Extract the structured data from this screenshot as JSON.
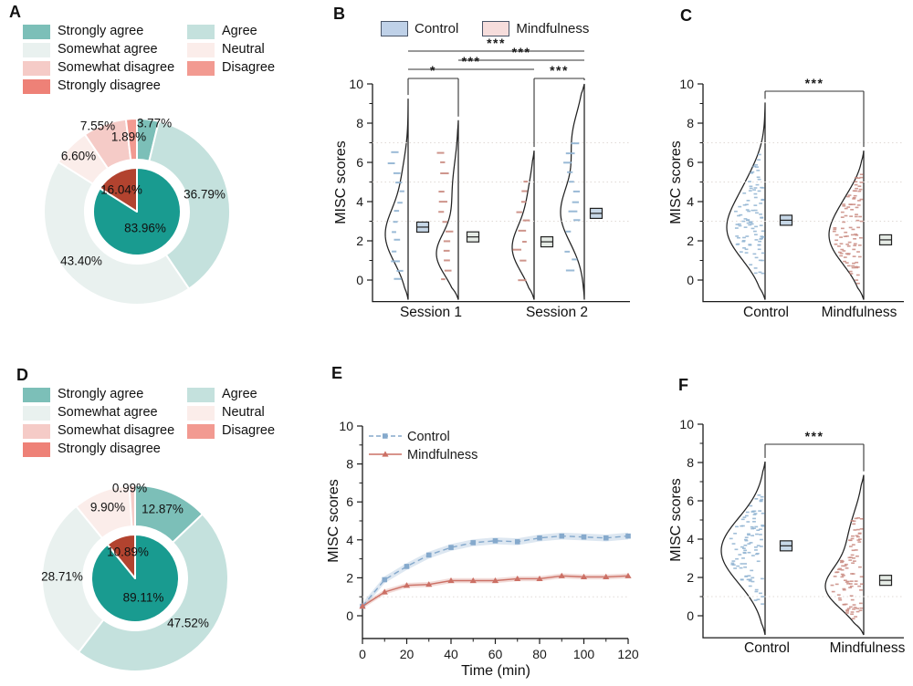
{
  "figure_title": "MISC scores figure",
  "colors": {
    "strongly_agree": "#7CBFB8",
    "agree": "#C4E1DD",
    "somewhat_agree": "#E9F1EF",
    "neutral": "#FBEDEA",
    "somewhat_disagree": "#F5CBC7",
    "disagree": "#F29A91",
    "strongly_disagree": "#EE8177",
    "inner_agree": "#199B90",
    "inner_disagree": "#B2432F",
    "control_fill": "#BFD1E8",
    "mindfulness_fill": "#F6DDDC",
    "control_line": "#85A9CC",
    "mindfulness_line": "#CC7065",
    "control_scatter": "#8FB3D1",
    "mindfulness_scatter": "#C98A80",
    "box_control": "#C7D8E8",
    "box_mindfulness": "#E6ECE6",
    "band_control": "rgba(133,169,204,0.28)",
    "band_mindfulness": "rgba(204,112,101,0.25)",
    "refline": "#E0DAD6",
    "axis": "#1A1A1A"
  },
  "chart_data": [
    {
      "id": "A",
      "type": "donut",
      "legend": [
        {
          "label": "Strongly agree",
          "color_key": "strongly_agree"
        },
        {
          "label": "Somewhat agree",
          "color_key": "somewhat_agree"
        },
        {
          "label": "Somewhat disagree",
          "color_key": "somewhat_disagree"
        },
        {
          "label": "Strongly disagree",
          "color_key": "strongly_disagree"
        },
        {
          "label": "Agree",
          "color_key": "agree"
        },
        {
          "label": "Neutral",
          "color_key": "neutral"
        },
        {
          "label": "Disagree",
          "color_key": "disagree"
        }
      ],
      "outer": [
        {
          "label": "Strongly agree",
          "value": 3.77,
          "pct": "3.77%",
          "color_key": "strongly_agree"
        },
        {
          "label": "Agree",
          "value": 36.79,
          "pct": "36.79%",
          "color_key": "agree"
        },
        {
          "label": "Somewhat agree",
          "value": 43.4,
          "pct": "43.40%",
          "color_key": "somewhat_agree"
        },
        {
          "label": "Neutral",
          "value": 6.6,
          "pct": "6.60%",
          "color_key": "neutral"
        },
        {
          "label": "Somewhat disagree",
          "value": 7.55,
          "pct": "7.55%",
          "color_key": "somewhat_disagree"
        },
        {
          "label": "Disagree",
          "value": 1.89,
          "pct": "1.89%",
          "color_key": "disagree"
        }
      ],
      "inner": [
        {
          "label": "Total agree",
          "value": 83.96,
          "pct": "83.96%",
          "color_key": "inner_agree"
        },
        {
          "label": "Total disagree",
          "value": 16.04,
          "pct": "16.04%",
          "color_key": "inner_disagree"
        }
      ]
    },
    {
      "id": "B",
      "type": "half_violin",
      "ylabel": "MISC scores",
      "yticks": [
        0,
        2,
        4,
        6,
        8,
        10
      ],
      "groups": [
        "Session 1",
        "Session 2"
      ],
      "legend": [
        {
          "label": "Control",
          "color_key": "control_fill"
        },
        {
          "label": "Mindfulness",
          "color_key": "mindfulness_fill"
        }
      ],
      "reflines": [
        3,
        5,
        7
      ],
      "violins": [
        {
          "group": "Session 1",
          "condition": "control",
          "mean": 2.7,
          "range": [
            -1,
            9.25
          ],
          "comps": [
            [
              2.3,
              1.4,
              1
            ],
            [
              5.3,
              1.2,
              0.2
            ]
          ],
          "points_range": [
            0,
            6.5
          ]
        },
        {
          "group": "Session 1",
          "condition": "mindfulness",
          "mean": 2.2,
          "range": [
            -1,
            8.15
          ],
          "comps": [
            [
              1.3,
              1.1,
              1
            ],
            [
              4.5,
              1.5,
              0.28
            ]
          ],
          "points_range": [
            0,
            6.5
          ]
        },
        {
          "group": "Session 2",
          "condition": "mindfulness",
          "mean": 1.95,
          "range": [
            -1,
            6.6
          ],
          "comps": [
            [
              1.6,
              1.2,
              1
            ],
            [
              4.2,
              1.2,
              0.25
            ]
          ],
          "points_range": [
            0,
            5.5
          ]
        },
        {
          "group": "Session 2",
          "condition": "control",
          "mean": 3.4,
          "range": [
            -1,
            10
          ],
          "comps": [
            [
              3.4,
              1.5,
              1
            ],
            [
              7.2,
              1.4,
              0.5
            ]
          ],
          "points_range": [
            0,
            7
          ]
        }
      ],
      "significance": [
        {
          "from": 0,
          "to": 3,
          "label": "***"
        },
        {
          "from": 1,
          "to": 3,
          "label": "***"
        },
        {
          "from": 0,
          "to": 2,
          "label": "***"
        },
        {
          "from": 0,
          "to": 1,
          "label": "*"
        },
        {
          "from": 2,
          "to": 3,
          "label": "***"
        }
      ]
    },
    {
      "id": "C",
      "type": "half_violin",
      "ylabel": "MISC scores",
      "yticks": [
        0,
        2,
        4,
        6,
        8,
        10
      ],
      "categories": [
        "Control",
        "Mindfulness"
      ],
      "reflines": [
        3,
        5,
        7
      ],
      "violins": [
        {
          "condition": "control",
          "mean": 3.05,
          "range": [
            -1,
            9.05
          ],
          "comps": [
            [
              2.5,
              1.5,
              1
            ],
            [
              5.0,
              1.3,
              0.3
            ]
          ],
          "points_range": [
            0.3,
            6.4
          ]
        },
        {
          "condition": "mindfulness",
          "mean": 2.05,
          "range": [
            -1,
            6.6
          ],
          "comps": [
            [
              2.2,
              1.4,
              1
            ],
            [
              4.3,
              1.0,
              0.2
            ]
          ],
          "points_range": [
            -0.2,
            5.6
          ]
        }
      ],
      "significance": [
        {
          "from": 0,
          "to": 1,
          "label": "***"
        }
      ]
    },
    {
      "id": "D",
      "type": "donut",
      "legend": [
        {
          "label": "Strongly agree",
          "color_key": "strongly_agree"
        },
        {
          "label": "Somewhat agree",
          "color_key": "somewhat_agree"
        },
        {
          "label": "Somewhat disagree",
          "color_key": "somewhat_disagree"
        },
        {
          "label": "Strongly disagree",
          "color_key": "strongly_disagree"
        },
        {
          "label": "Agree",
          "color_key": "agree"
        },
        {
          "label": "Neutral",
          "color_key": "neutral"
        },
        {
          "label": "Disagree",
          "color_key": "disagree"
        }
      ],
      "outer": [
        {
          "label": "Strongly agree",
          "value": 12.87,
          "pct": "12.87%",
          "color_key": "strongly_agree"
        },
        {
          "label": "Agree",
          "value": 47.52,
          "pct": "47.52%",
          "color_key": "agree"
        },
        {
          "label": "Somewhat agree",
          "value": 28.71,
          "pct": "28.71%",
          "color_key": "somewhat_agree"
        },
        {
          "label": "Neutral",
          "value": 9.9,
          "pct": "9.90%",
          "color_key": "neutral"
        },
        {
          "label": "Somewhat disagree",
          "value": 0.99,
          "pct": "0.99%",
          "color_key": "somewhat_disagree"
        }
      ],
      "inner": [
        {
          "label": "Total agree",
          "value": 89.11,
          "pct": "89.11%",
          "color_key": "inner_agree"
        },
        {
          "label": "Total disagree",
          "value": 10.89,
          "pct": "10.89%",
          "color_key": "inner_disagree"
        }
      ]
    },
    {
      "id": "E",
      "type": "line",
      "xlabel": "Time (min)",
      "ylabel": "MISC scores",
      "xticks": [
        0,
        20,
        40,
        60,
        80,
        100,
        120
      ],
      "yticks": [
        0,
        2,
        4,
        6,
        8,
        10
      ],
      "x": [
        0,
        10,
        20,
        30,
        40,
        50,
        60,
        70,
        80,
        90,
        100,
        110,
        120
      ],
      "series": [
        {
          "name": "Control",
          "marker": "square",
          "line": "dashed",
          "color_key": "control_line",
          "band_key": "band_control",
          "values": [
            0.5,
            1.9,
            2.6,
            3.2,
            3.6,
            3.85,
            3.95,
            3.9,
            4.1,
            4.2,
            4.15,
            4.1,
            4.2
          ],
          "band": 0.18
        },
        {
          "name": "Mindfulness",
          "marker": "triangle",
          "line": "solid",
          "color_key": "mindfulness_line",
          "band_key": "band_mindfulness",
          "values": [
            0.5,
            1.25,
            1.6,
            1.65,
            1.85,
            1.85,
            1.85,
            1.95,
            1.95,
            2.1,
            2.05,
            2.05,
            2.1
          ],
          "band": 0.13
        }
      ],
      "reflines": [
        1
      ]
    },
    {
      "id": "F",
      "type": "half_violin",
      "ylabel": "MISC scores",
      "yticks": [
        0,
        2,
        4,
        6,
        8,
        10
      ],
      "categories": [
        "Control",
        "Mindfulness"
      ],
      "reflines": [
        1
      ],
      "violins": [
        {
          "condition": "control",
          "mean": 3.65,
          "range": [
            -1,
            8.05
          ],
          "comps": [
            [
              3.4,
              1.7,
              1
            ]
          ],
          "points_range": [
            0.5,
            6.3
          ]
        },
        {
          "condition": "mindfulness",
          "mean": 1.85,
          "range": [
            -1,
            7.35
          ],
          "comps": [
            [
              1.4,
              1.1,
              1
            ],
            [
              4.0,
              1.5,
              0.42
            ]
          ],
          "points_range": [
            -0.3,
            5.3
          ]
        }
      ],
      "significance": [
        {
          "from": 0,
          "to": 1,
          "label": "***"
        }
      ]
    }
  ]
}
